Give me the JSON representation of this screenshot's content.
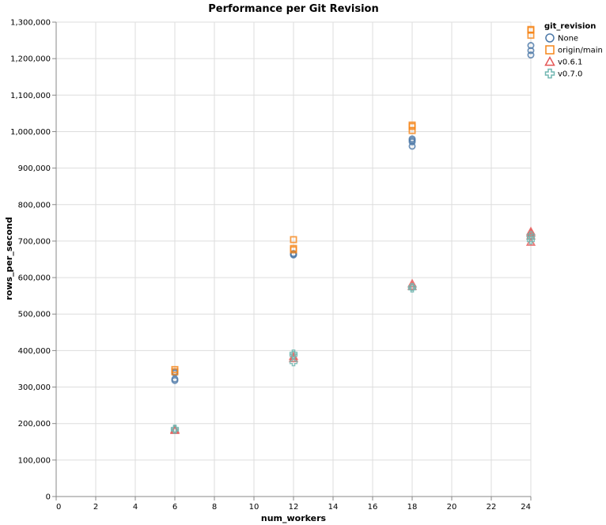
{
  "chart_data": {
    "type": "scatter",
    "title": "Performance per Git Revision",
    "xlabel": "num_workers",
    "ylabel": "rows_per_second",
    "xlim": [
      0,
      24
    ],
    "ylim": [
      0,
      1300000
    ],
    "xticks": [
      0,
      2,
      4,
      6,
      8,
      10,
      12,
      14,
      16,
      18,
      20,
      22,
      24
    ],
    "xtick_labels": [
      "0",
      "2",
      "4",
      "6",
      "8",
      "10",
      "12",
      "14",
      "16",
      "18",
      "20",
      "22",
      "24"
    ],
    "yticks": [
      0,
      100000,
      200000,
      300000,
      400000,
      500000,
      600000,
      700000,
      800000,
      900000,
      1000000,
      1100000,
      1200000,
      1300000
    ],
    "ytick_labels": [
      "0",
      "100,000",
      "200,000",
      "300,000",
      "400,000",
      "500,000",
      "600,000",
      "700,000",
      "800,000",
      "900,000",
      "1,000,000",
      "1,100,000",
      "1,200,000",
      "1,300,000"
    ],
    "grid": true,
    "legend": {
      "title": "git_revision",
      "position": "top-right"
    },
    "series": [
      {
        "name": "None",
        "shape": "circle",
        "color": "#4c78a8",
        "points": [
          [
            6,
            318000
          ],
          [
            6,
            322000
          ],
          [
            6,
            338000
          ],
          [
            6,
            342000
          ],
          [
            12,
            662000
          ],
          [
            12,
            664000
          ],
          [
            12,
            666000
          ],
          [
            18,
            960000
          ],
          [
            18,
            972000
          ],
          [
            18,
            976000
          ],
          [
            18,
            980000
          ],
          [
            24,
            1210000
          ],
          [
            24,
            1222000
          ],
          [
            24,
            1236000
          ]
        ]
      },
      {
        "name": "origin/main",
        "shape": "square",
        "color": "#f58518",
        "points": [
          [
            6,
            342000
          ],
          [
            6,
            348000
          ],
          [
            12,
            676000
          ],
          [
            12,
            680000
          ],
          [
            12,
            704000
          ],
          [
            18,
            1003000
          ],
          [
            18,
            1014000
          ],
          [
            18,
            1018000
          ],
          [
            24,
            1264000
          ],
          [
            24,
            1278000
          ],
          [
            24,
            1280000
          ]
        ]
      },
      {
        "name": "v0.6.1",
        "shape": "triangle",
        "color": "#e45756",
        "points": [
          [
            6,
            181000
          ],
          [
            6,
            184000
          ],
          [
            12,
            378000
          ],
          [
            12,
            384000
          ],
          [
            18,
            576000
          ],
          [
            18,
            583000
          ],
          [
            24,
            697000
          ],
          [
            24,
            714000
          ],
          [
            24,
            722000
          ],
          [
            24,
            726000
          ]
        ]
      },
      {
        "name": "v0.7.0",
        "shape": "cross",
        "color": "#72b7b2",
        "points": [
          [
            6,
            183000
          ],
          [
            6,
            186000
          ],
          [
            12,
            368000
          ],
          [
            12,
            388000
          ],
          [
            12,
            392000
          ],
          [
            18,
            570000
          ],
          [
            18,
            574000
          ],
          [
            24,
            702000
          ],
          [
            24,
            708000
          ],
          [
            24,
            716000
          ]
        ]
      }
    ]
  }
}
